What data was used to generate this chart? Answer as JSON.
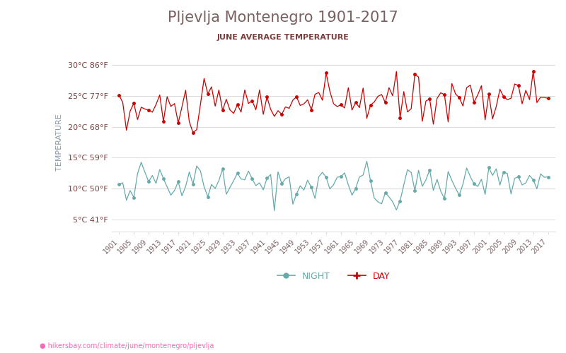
{
  "title": "Pljevlja Montenegro 1901-2017",
  "subtitle": "JUNE AVERAGE TEMPERATURE",
  "ylabel": "TEMPERATURE",
  "url_text": "hikersbay.com/climate/june/montenegro/pljevlja",
  "background_color": "#ffffff",
  "title_color": "#7a6060",
  "subtitle_color": "#7a4040",
  "ylabel_color": "#8899aa",
  "yticks_celsius": [
    5,
    10,
    15,
    20,
    25,
    30
  ],
  "yticks_fahrenheit": [
    41,
    50,
    59,
    68,
    77,
    86
  ],
  "ymin": 3,
  "ymax": 32,
  "day_color": "#cc0000",
  "night_color": "#66aaaa",
  "grid_color": "#dddddd",
  "url_color": "#ff69b4",
  "legend_night_color": "#66aaaa",
  "legend_day_color": "#cc0000"
}
